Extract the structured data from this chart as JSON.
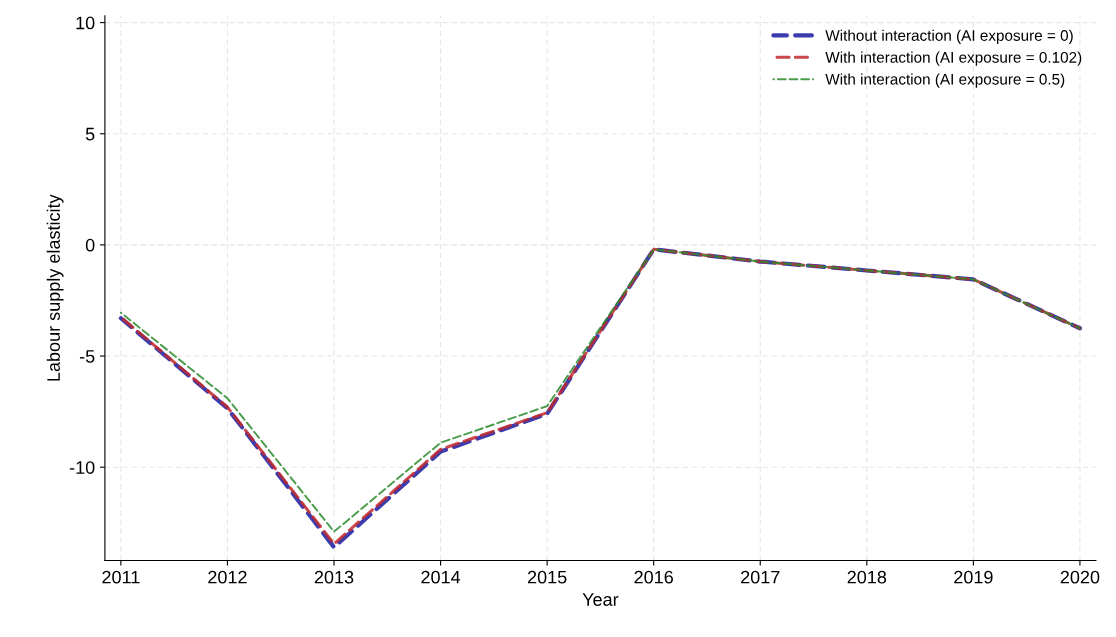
{
  "chart_data": {
    "type": "line",
    "xlabel": "Year",
    "ylabel": "Labour supply elasticity",
    "x": [
      2011,
      2012,
      2013,
      2014,
      2015,
      2016,
      2017,
      2018,
      2019,
      2020
    ],
    "series": [
      {
        "name": "Without interaction (AI exposure = 0)",
        "color": "#1a1aa0",
        "values": [
          -3.3,
          -7.35,
          -13.6,
          -9.3,
          -7.6,
          -0.2,
          -0.75,
          -1.15,
          -1.55,
          -3.75
        ]
      },
      {
        "name": "With interaction (AI exposure = 0.102)",
        "color": "#c0282d",
        "values": [
          -3.25,
          -7.3,
          -13.45,
          -9.2,
          -7.55,
          -0.2,
          -0.75,
          -1.15,
          -1.55,
          -3.75
        ]
      },
      {
        "name": "With interaction (AI exposure = 0.5)",
        "color": "#2a8a2a",
        "values": [
          -3.05,
          -6.9,
          -12.9,
          -8.9,
          -7.25,
          -0.2,
          -0.75,
          -1.15,
          -1.55,
          -3.75
        ]
      }
    ],
    "xlim": [
      2010.85,
      2020.15
    ],
    "xticks": [
      2011,
      2012,
      2013,
      2014,
      2015,
      2016,
      2017,
      2018,
      2019,
      2020
    ],
    "ylim": [
      -14.2,
      10.3
    ],
    "yticks": [
      -10,
      -5,
      0,
      5,
      10
    ],
    "grid": true,
    "legend": "top right",
    "marker": "none",
    "line_style": "dashed"
  }
}
